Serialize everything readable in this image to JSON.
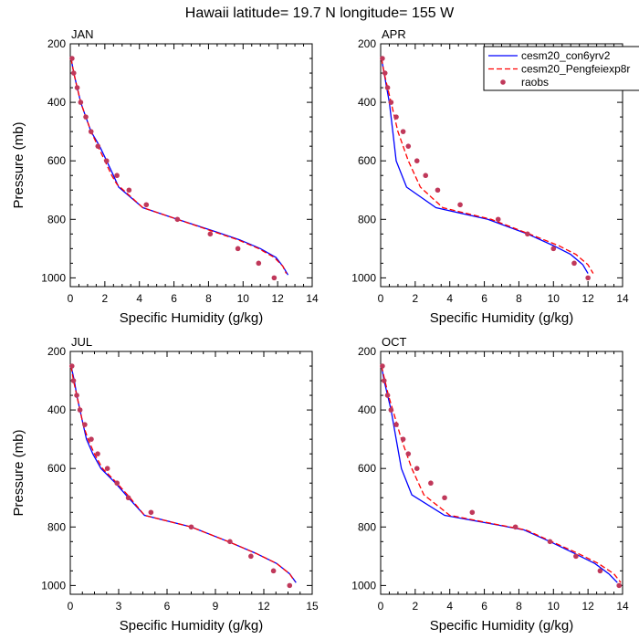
{
  "figure": {
    "title": "Hawaii  latitude= 19.7 N longitude= 155 W"
  },
  "legend": {
    "entries": [
      {
        "name": "cesm20_con6yrv2",
        "color": "#0000ff",
        "style": "solid"
      },
      {
        "name": "cesm20_Pengfeiexp8r",
        "color": "#ff0000",
        "style": "dashed"
      },
      {
        "name": "raobs",
        "color": "#c0385a",
        "style": "dot"
      }
    ],
    "placement": "top-right of APR panel"
  },
  "chart_data": [
    {
      "type": "line",
      "title": "JAN",
      "xlabel": "Specific Humidity (g/kg)",
      "ylabel": "Pressure (mb)",
      "xlim": [
        0,
        14
      ],
      "ylim": [
        200,
        1030
      ],
      "y_reversed": true,
      "xticks": [
        0,
        2,
        4,
        6,
        8,
        10,
        12,
        14
      ],
      "yticks": [
        200,
        400,
        600,
        800,
        1000
      ],
      "grid": false,
      "series": [
        {
          "name": "cesm20_con6yrv2",
          "color": "#0000ff",
          "dash": "solid",
          "points": [
            [
              0.05,
              250
            ],
            [
              0.2,
              300
            ],
            [
              0.4,
              350
            ],
            [
              0.6,
              400
            ],
            [
              0.9,
              450
            ],
            [
              1.2,
              500
            ],
            [
              1.7,
              550
            ],
            [
              2.1,
              600
            ],
            [
              2.5,
              650
            ],
            [
              2.8,
              690
            ],
            [
              4.2,
              760
            ],
            [
              6.2,
              800
            ],
            [
              8.3,
              840
            ],
            [
              9.8,
              870
            ],
            [
              11.0,
              900
            ],
            [
              11.9,
              930
            ],
            [
              12.3,
              960
            ],
            [
              12.6,
              990
            ]
          ]
        },
        {
          "name": "cesm20_Pengfeiexp8r",
          "color": "#ff0000",
          "dash": "dashed",
          "points": [
            [
              0.05,
              250
            ],
            [
              0.2,
              300
            ],
            [
              0.4,
              350
            ],
            [
              0.6,
              400
            ],
            [
              0.9,
              450
            ],
            [
              1.2,
              500
            ],
            [
              1.6,
              550
            ],
            [
              2.0,
              600
            ],
            [
              2.4,
              650
            ],
            [
              2.7,
              680
            ],
            [
              4.2,
              760
            ],
            [
              6.2,
              800
            ],
            [
              8.2,
              840
            ],
            [
              9.7,
              870
            ],
            [
              10.9,
              900
            ],
            [
              11.8,
              930
            ],
            [
              12.3,
              960
            ],
            [
              12.5,
              985
            ]
          ]
        },
        {
          "name": "raobs",
          "color": "#c0385a",
          "dash": "dot",
          "points": [
            [
              0.1,
              250
            ],
            [
              0.2,
              300
            ],
            [
              0.4,
              350
            ],
            [
              0.6,
              400
            ],
            [
              0.9,
              450
            ],
            [
              1.2,
              500
            ],
            [
              1.6,
              550
            ],
            [
              2.1,
              600
            ],
            [
              2.7,
              650
            ],
            [
              3.4,
              700
            ],
            [
              4.4,
              750
            ],
            [
              6.2,
              800
            ],
            [
              8.1,
              850
            ],
            [
              9.7,
              900
            ],
            [
              10.9,
              950
            ],
            [
              11.8,
              1000
            ]
          ]
        }
      ]
    },
    {
      "type": "line",
      "title": "APR",
      "xlabel": "Specific Humidity (g/kg)",
      "ylabel": "",
      "xlim": [
        0,
        14
      ],
      "ylim": [
        200,
        1030
      ],
      "y_reversed": true,
      "xticks": [
        0,
        2,
        4,
        6,
        8,
        10,
        12,
        14
      ],
      "yticks": [
        200,
        400,
        600,
        800,
        1000
      ],
      "grid": false,
      "series": [
        {
          "name": "cesm20_con6yrv2",
          "color": "#0000ff",
          "dash": "solid",
          "points": [
            [
              0.05,
              250
            ],
            [
              0.2,
              300
            ],
            [
              0.35,
              350
            ],
            [
              0.5,
              400
            ],
            [
              0.7,
              500
            ],
            [
              0.9,
              600
            ],
            [
              1.5,
              690
            ],
            [
              3.2,
              760
            ],
            [
              6.2,
              800
            ],
            [
              8.5,
              850
            ],
            [
              10.0,
              890
            ],
            [
              11.0,
              920
            ],
            [
              11.7,
              955
            ],
            [
              12.0,
              985
            ]
          ]
        },
        {
          "name": "cesm20_Pengfeiexp8r",
          "color": "#ff0000",
          "dash": "dashed",
          "points": [
            [
              0.05,
              250
            ],
            [
              0.2,
              300
            ],
            [
              0.4,
              350
            ],
            [
              0.6,
              400
            ],
            [
              1.0,
              500
            ],
            [
              1.6,
              600
            ],
            [
              2.3,
              690
            ],
            [
              3.6,
              760
            ],
            [
              6.4,
              800
            ],
            [
              8.6,
              850
            ],
            [
              10.3,
              890
            ],
            [
              11.3,
              920
            ],
            [
              12.0,
              955
            ],
            [
              12.3,
              985
            ]
          ]
        },
        {
          "name": "raobs",
          "color": "#c0385a",
          "dash": "dot",
          "points": [
            [
              0.1,
              250
            ],
            [
              0.25,
              300
            ],
            [
              0.4,
              350
            ],
            [
              0.6,
              400
            ],
            [
              0.9,
              450
            ],
            [
              1.3,
              500
            ],
            [
              1.6,
              550
            ],
            [
              2.1,
              600
            ],
            [
              2.6,
              650
            ],
            [
              3.3,
              700
            ],
            [
              4.6,
              750
            ],
            [
              6.8,
              800
            ],
            [
              8.5,
              850
            ],
            [
              10.0,
              900
            ],
            [
              11.2,
              950
            ],
            [
              12.0,
              1000
            ]
          ]
        }
      ]
    },
    {
      "type": "line",
      "title": "JUL",
      "xlabel": "Specific Humidity (g/kg)",
      "ylabel": "Pressure (mb)",
      "xlim": [
        0,
        15
      ],
      "ylim": [
        200,
        1030
      ],
      "y_reversed": true,
      "xticks": [
        0,
        3,
        6,
        9,
        12,
        15
      ],
      "yticks": [
        200,
        400,
        600,
        800,
        1000
      ],
      "grid": false,
      "series": [
        {
          "name": "cesm20_con6yrv2",
          "color": "#0000ff",
          "dash": "solid",
          "points": [
            [
              0.05,
              250
            ],
            [
              0.25,
              300
            ],
            [
              0.4,
              350
            ],
            [
              0.6,
              400
            ],
            [
              0.8,
              450
            ],
            [
              1.0,
              500
            ],
            [
              1.4,
              550
            ],
            [
              1.9,
              600
            ],
            [
              2.8,
              650
            ],
            [
              3.6,
              700
            ],
            [
              4.6,
              760
            ],
            [
              7.5,
              800
            ],
            [
              9.8,
              850
            ],
            [
              11.5,
              890
            ],
            [
              12.8,
              925
            ],
            [
              13.6,
              960
            ],
            [
              14.0,
              990
            ]
          ]
        },
        {
          "name": "cesm20_Pengfeiexp8r",
          "color": "#ff0000",
          "dash": "dashed",
          "points": [
            [
              0.05,
              250
            ],
            [
              0.2,
              300
            ],
            [
              0.4,
              350
            ],
            [
              0.6,
              400
            ],
            [
              0.8,
              450
            ],
            [
              1.1,
              500
            ],
            [
              1.5,
              550
            ],
            [
              2.0,
              600
            ],
            [
              2.9,
              650
            ],
            [
              3.7,
              700
            ],
            [
              4.6,
              760
            ],
            [
              7.5,
              800
            ],
            [
              9.8,
              850
            ],
            [
              11.5,
              890
            ],
            [
              12.8,
              925
            ],
            [
              13.6,
              960
            ],
            [
              13.9,
              985
            ]
          ]
        },
        {
          "name": "raobs",
          "color": "#c0385a",
          "dash": "dot",
          "points": [
            [
              0.1,
              250
            ],
            [
              0.2,
              300
            ],
            [
              0.4,
              350
            ],
            [
              0.6,
              400
            ],
            [
              0.9,
              450
            ],
            [
              1.3,
              500
            ],
            [
              1.7,
              550
            ],
            [
              2.3,
              600
            ],
            [
              2.9,
              650
            ],
            [
              3.6,
              700
            ],
            [
              5.0,
              750
            ],
            [
              7.5,
              800
            ],
            [
              9.9,
              850
            ],
            [
              11.2,
              900
            ],
            [
              12.6,
              950
            ],
            [
              13.6,
              1000
            ]
          ]
        }
      ]
    },
    {
      "type": "line",
      "title": "OCT",
      "xlabel": "Specific Humidity (g/kg)",
      "ylabel": "",
      "xlim": [
        0,
        14
      ],
      "ylim": [
        200,
        1030
      ],
      "y_reversed": true,
      "xticks": [
        0,
        2,
        4,
        6,
        8,
        10,
        12,
        14
      ],
      "yticks": [
        200,
        400,
        600,
        800,
        1000
      ],
      "grid": false,
      "series": [
        {
          "name": "cesm20_con6yrv2",
          "color": "#0000ff",
          "dash": "solid",
          "points": [
            [
              0.05,
              250
            ],
            [
              0.2,
              300
            ],
            [
              0.4,
              350
            ],
            [
              0.6,
              400
            ],
            [
              0.9,
              500
            ],
            [
              1.2,
              600
            ],
            [
              1.8,
              690
            ],
            [
              3.7,
              760
            ],
            [
              6.5,
              790
            ],
            [
              8.3,
              810
            ],
            [
              9.8,
              850
            ],
            [
              11.2,
              890
            ],
            [
              12.4,
              925
            ],
            [
              13.2,
              960
            ],
            [
              13.7,
              990
            ]
          ]
        },
        {
          "name": "cesm20_Pengfeiexp8r",
          "color": "#ff0000",
          "dash": "dashed",
          "points": [
            [
              0.05,
              250
            ],
            [
              0.25,
              300
            ],
            [
              0.45,
              350
            ],
            [
              0.7,
              400
            ],
            [
              1.2,
              500
            ],
            [
              1.8,
              600
            ],
            [
              2.5,
              690
            ],
            [
              4.0,
              760
            ],
            [
              6.6,
              790
            ],
            [
              8.4,
              810
            ],
            [
              9.9,
              850
            ],
            [
              11.4,
              890
            ],
            [
              12.6,
              925
            ],
            [
              13.5,
              960
            ],
            [
              13.9,
              990
            ]
          ]
        },
        {
          "name": "raobs",
          "color": "#c0385a",
          "dash": "dot",
          "points": [
            [
              0.1,
              250
            ],
            [
              0.2,
              300
            ],
            [
              0.4,
              350
            ],
            [
              0.6,
              400
            ],
            [
              0.9,
              450
            ],
            [
              1.3,
              500
            ],
            [
              1.6,
              550
            ],
            [
              2.1,
              600
            ],
            [
              2.9,
              650
            ],
            [
              3.7,
              700
            ],
            [
              5.3,
              750
            ],
            [
              7.8,
              800
            ],
            [
              9.8,
              850
            ],
            [
              11.3,
              900
            ],
            [
              12.7,
              950
            ],
            [
              13.8,
              1000
            ]
          ]
        }
      ]
    }
  ]
}
